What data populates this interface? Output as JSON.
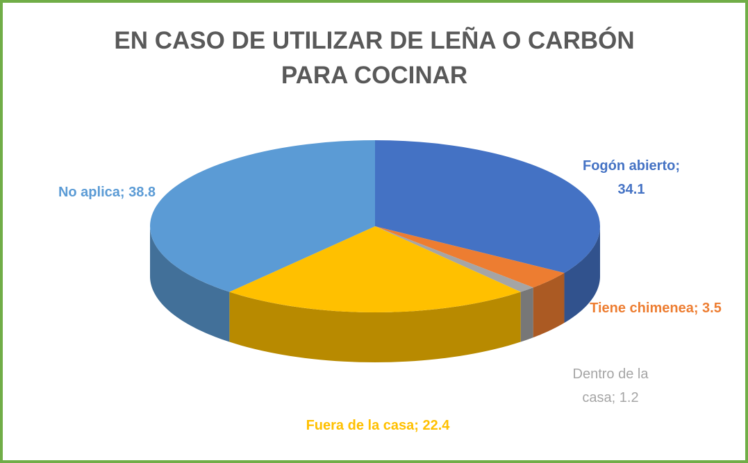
{
  "chart_data": {
    "type": "pie3d",
    "title": "EN CASO DE UTILIZAR DE LEÑA O CARBÓN PARA COCINAR",
    "categories": [
      "Fogón abierto",
      "Tiene chimenea",
      "Dentro de la casa",
      "Fuera de la casa",
      "No aplica"
    ],
    "values": [
      34.1,
      3.5,
      1.2,
      22.4,
      38.8
    ],
    "colors": [
      "#4472c4",
      "#ed7d31",
      "#a5a5a5",
      "#ffc000",
      "#5b9bd5"
    ],
    "label_separator": "; "
  }
}
